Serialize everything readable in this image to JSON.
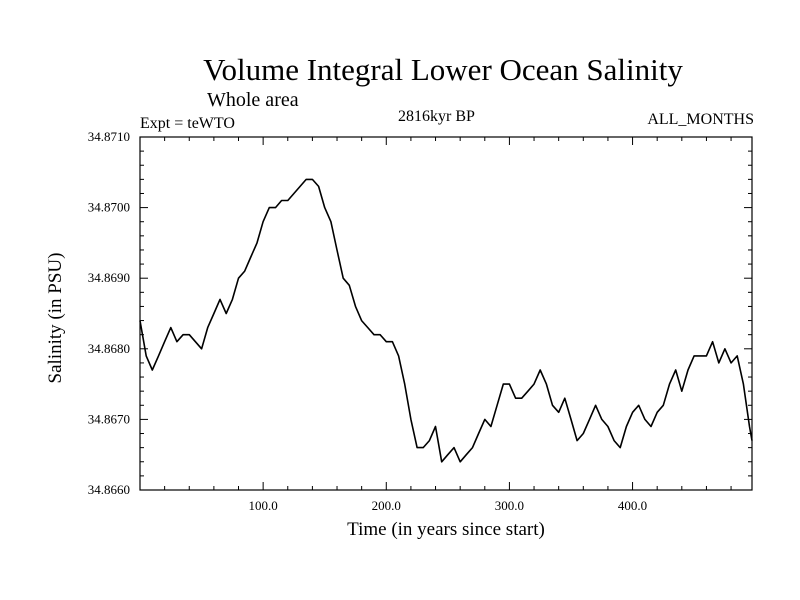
{
  "chart_data": {
    "type": "line",
    "title": "Volume Integral Lower Ocean Salinity",
    "subtitle": "Whole area",
    "experiment_label": "Expt = teWTO",
    "period_label": "2816kyr BP",
    "months_label": "ALL_MONTHS",
    "xlabel": "Time (in years since start)",
    "ylabel": "Salinity (in PSU)",
    "xlim": [
      0,
      497
    ],
    "ylim": [
      34.866,
      34.871
    ],
    "xticks": [
      100,
      200,
      300,
      400
    ],
    "xtick_labels": [
      "100.0",
      "200.0",
      "300.0",
      "400.0"
    ],
    "yticks": [
      34.866,
      34.867,
      34.868,
      34.869,
      34.87,
      34.871
    ],
    "ytick_labels": [
      "34.8660",
      "34.8670",
      "34.8680",
      "34.8690",
      "34.8700",
      "34.8710"
    ],
    "grid": false,
    "series": [
      {
        "name": "salinity",
        "x": [
          0,
          5,
          10,
          15,
          20,
          25,
          30,
          35,
          40,
          45,
          50,
          55,
          60,
          65,
          70,
          75,
          80,
          85,
          90,
          95,
          100,
          105,
          110,
          115,
          120,
          125,
          130,
          135,
          140,
          145,
          150,
          155,
          160,
          165,
          170,
          175,
          180,
          185,
          190,
          195,
          200,
          205,
          210,
          215,
          220,
          225,
          230,
          235,
          240,
          245,
          250,
          255,
          260,
          265,
          270,
          275,
          280,
          285,
          290,
          295,
          300,
          305,
          310,
          315,
          320,
          325,
          330,
          335,
          340,
          345,
          350,
          355,
          360,
          365,
          370,
          375,
          380,
          385,
          390,
          395,
          400,
          405,
          410,
          415,
          420,
          425,
          430,
          435,
          440,
          445,
          450,
          455,
          460,
          465,
          470,
          475,
          480,
          485,
          490,
          495,
          497
        ],
        "values": [
          34.8684,
          34.8679,
          34.8677,
          34.8679,
          34.8681,
          34.8683,
          34.8681,
          34.8682,
          34.8682,
          34.8681,
          34.868,
          34.8683,
          34.8685,
          34.8687,
          34.8685,
          34.8687,
          34.869,
          34.8691,
          34.8693,
          34.8695,
          34.8698,
          34.87,
          34.87,
          34.8701,
          34.8701,
          34.8702,
          34.8703,
          34.8704,
          34.8704,
          34.8703,
          34.87,
          34.8698,
          34.8694,
          34.869,
          34.8689,
          34.8686,
          34.8684,
          34.8683,
          34.8682,
          34.8682,
          34.8681,
          34.8681,
          34.8679,
          34.8675,
          34.867,
          34.8666,
          34.8666,
          34.8667,
          34.8669,
          34.8664,
          34.8665,
          34.8666,
          34.8664,
          34.8665,
          34.8666,
          34.8668,
          34.867,
          34.8669,
          34.8672,
          34.8675,
          34.8675,
          34.8673,
          34.8673,
          34.8674,
          34.8675,
          34.8677,
          34.8675,
          34.8672,
          34.8671,
          34.8673,
          34.867,
          34.8667,
          34.8668,
          34.867,
          34.8672,
          34.867,
          34.8669,
          34.8667,
          34.8666,
          34.8669,
          34.8671,
          34.8672,
          34.867,
          34.8669,
          34.8671,
          34.8672,
          34.8675,
          34.8677,
          34.8674,
          34.8677,
          34.8679,
          34.8679,
          34.8679,
          34.8681,
          34.8678,
          34.868,
          34.8678,
          34.8679,
          34.8675,
          34.8669,
          34.8667
        ]
      }
    ]
  }
}
